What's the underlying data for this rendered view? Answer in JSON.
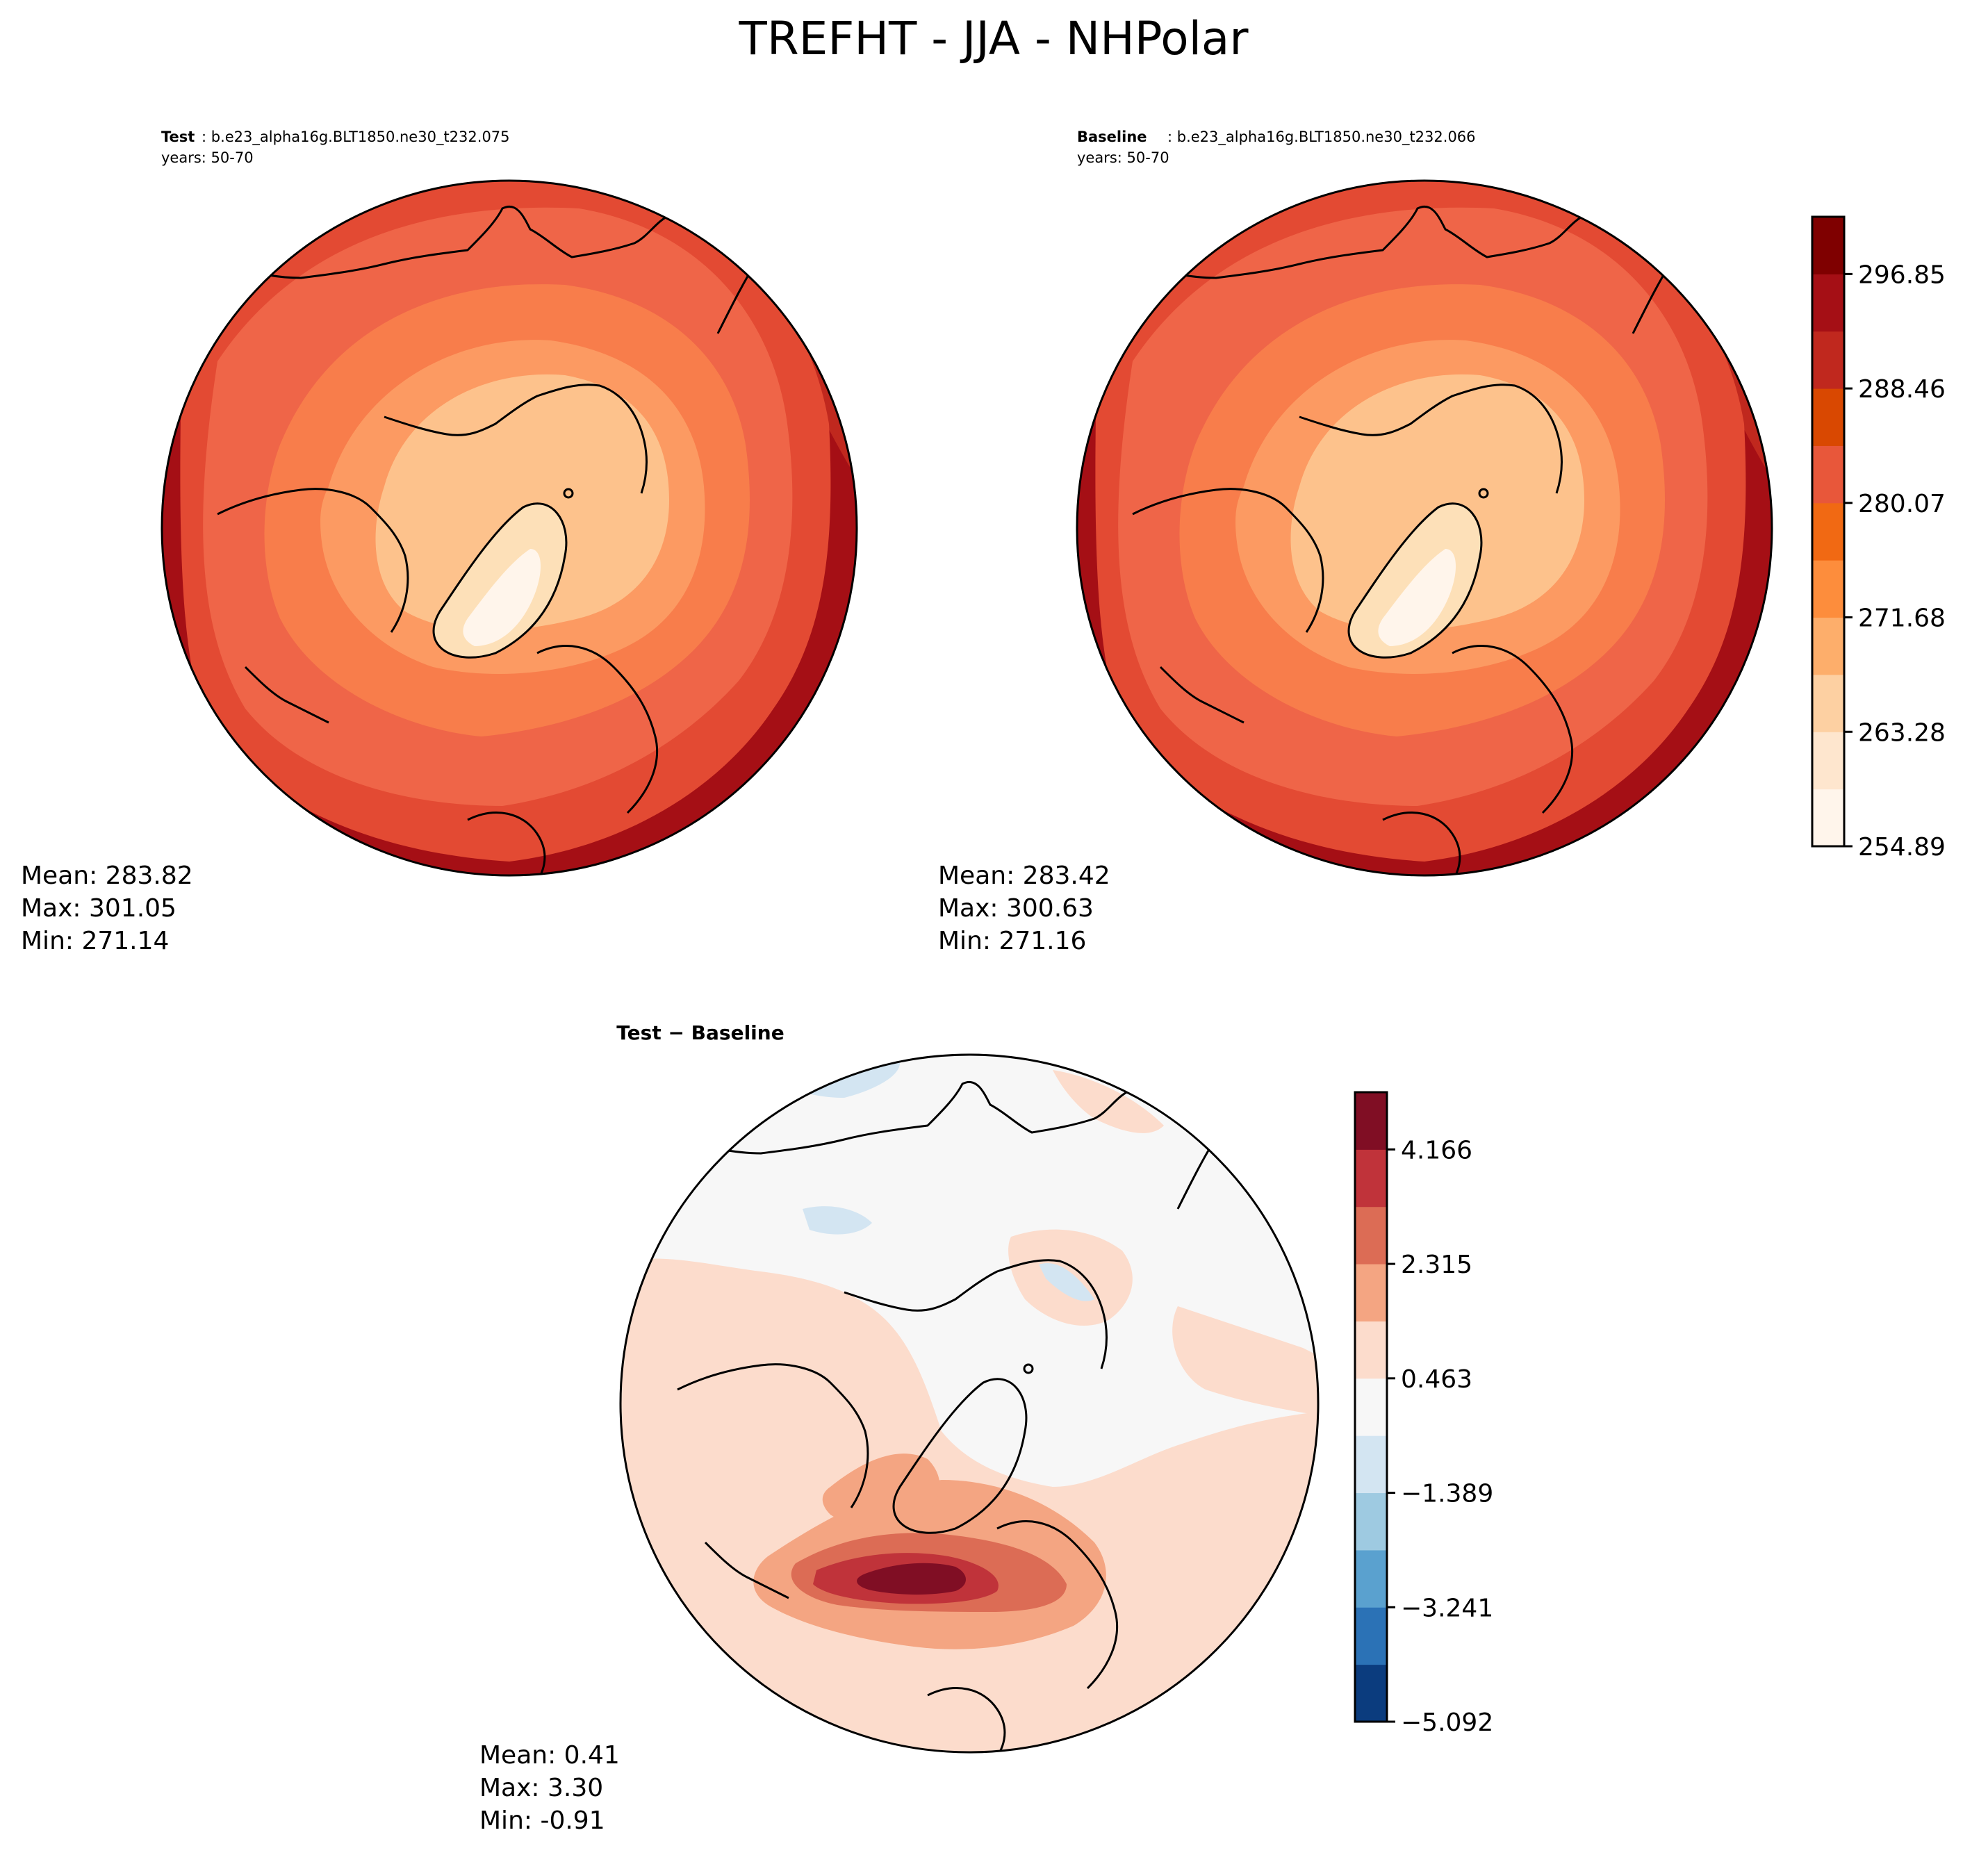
{
  "figure": {
    "title": "TREFHT - JJA - NHPolar"
  },
  "panels": {
    "test": {
      "label": "Test",
      "case": ": b.e23_alpha16g.BLT1850.ne30_t232.075",
      "years": "years: 50-70",
      "mean": "Mean: 283.82",
      "max": "Max: 301.05",
      "min": "Min: 271.14"
    },
    "baseline": {
      "label": "Baseline",
      "case": ": b.e23_alpha16g.BLT1850.ne30_t232.066",
      "years": "years: 50-70",
      "mean": "Mean: 283.42",
      "max": "Max: 300.63",
      "min": "Min: 271.16"
    },
    "diff": {
      "title": "Test − Baseline",
      "mean": "Mean:  0.41",
      "max": "Max:  3.30",
      "min": "Min: -0.91"
    }
  },
  "colorbars": {
    "abs": {
      "ticks": [
        "296.85",
        "288.46",
        "280.07",
        "271.68",
        "263.28",
        "254.89"
      ],
      "colors": [
        "#fff5eb",
        "#fee6ce",
        "#fdd0a2",
        "#fdae6b",
        "#fd8d3c",
        "#f16913",
        "#e8573a",
        "#d94801",
        "#c0281e",
        "#a50f15",
        "#7f0000"
      ]
    },
    "diff": {
      "ticks": [
        "4.166",
        "2.315",
        "0.463",
        "−1.389",
        "−3.241",
        "−5.092"
      ],
      "colors": [
        "#0b3c7e",
        "#2b72b6",
        "#5aa1cf",
        "#9ecae1",
        "#d3e5f2",
        "#f7f7f7",
        "#fcdccc",
        "#f4a582",
        "#dc6c55",
        "#c0333a",
        "#800e24"
      ]
    }
  },
  "map_colors": {
    "ocean_warm": "#a50f15",
    "band1": "#c0281e",
    "band2": "#e34a33",
    "band3": "#ef6548",
    "band4": "#f87d4b",
    "band5": "#fc9a62",
    "band6": "#fdc28c",
    "band7": "#fde0b8",
    "band8": "#fff5eb",
    "diff_bg": "#f7f7f7",
    "diff_pos1": "#fcdccc",
    "diff_pos2": "#f4a582",
    "diff_pos3": "#dc6c55",
    "diff_pos4": "#c0333a",
    "diff_pos5": "#800e24",
    "diff_neg1": "#d3e5f2"
  }
}
